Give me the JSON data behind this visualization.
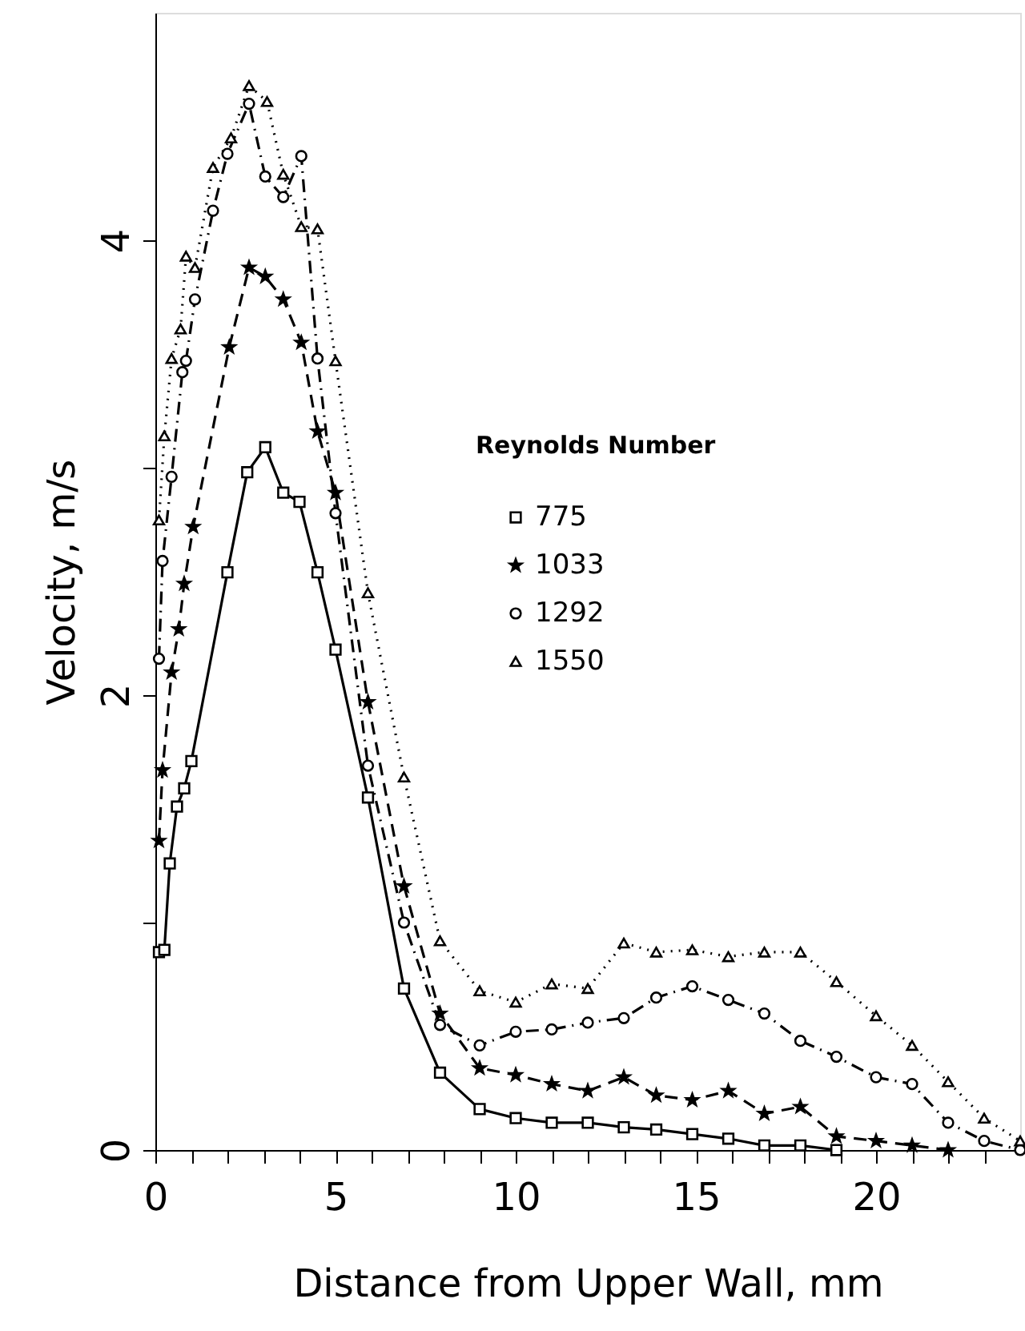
{
  "chart_data": {
    "type": "line",
    "xlabel": "Distance from Upper Wall, mm",
    "ylabel": "Velocity, m/s",
    "legend_title": "Reynolds Number",
    "legend": "right",
    "grid": false,
    "xlim": [
      0,
      24
    ],
    "ylim": [
      0,
      5
    ],
    "xticks": [
      0,
      {
        "value": 1,
        "label": null
      },
      {
        "value": 2,
        "label": null
      },
      {
        "value": 3,
        "label": null
      },
      {
        "value": 4,
        "label": null
      },
      5,
      {
        "value": 6,
        "label": null
      },
      {
        "value": 7,
        "label": null
      },
      {
        "value": 8,
        "label": null
      },
      {
        "value": 9,
        "label": null
      },
      10,
      {
        "value": 11,
        "label": null
      },
      {
        "value": 12,
        "label": null
      },
      {
        "value": 13,
        "label": null
      },
      {
        "value": 14,
        "label": null
      },
      15,
      {
        "value": 16,
        "label": null
      },
      {
        "value": 17,
        "label": null
      },
      {
        "value": 18,
        "label": null
      },
      {
        "value": 19,
        "label": null
      },
      20,
      {
        "value": 21,
        "label": null
      },
      {
        "value": 22,
        "label": null
      },
      {
        "value": 23,
        "label": null
      }
    ],
    "yticks": [
      0,
      {
        "value": 1,
        "label": null
      },
      2,
      {
        "value": 3,
        "label": null
      },
      4
    ],
    "series": [
      {
        "name": "775",
        "color": "#000000",
        "marker": "square",
        "line_style": "solid",
        "x": [
          0.1,
          0.25,
          0.4,
          0.6,
          0.8,
          1.0,
          2.0,
          2.55,
          3.05,
          3.55,
          4.0,
          4.5,
          5.0,
          5.9,
          6.9,
          7.9,
          9,
          10,
          11,
          12,
          13,
          13.9,
          14.9,
          15.9,
          16.9,
          17.9,
          18.9
        ],
        "values": [
          0.87,
          0.88,
          1.26,
          1.51,
          1.59,
          1.71,
          2.54,
          2.98,
          3.09,
          2.89,
          2.85,
          2.54,
          2.2,
          1.55,
          0.71,
          0.34,
          0.18,
          0.14,
          0.12,
          0.12,
          0.1,
          0.09,
          0.07,
          0.05,
          0.02,
          0.02,
          0
        ]
      },
      {
        "name": "1033",
        "color": "#000000",
        "marker": "star",
        "line_style": "dashed",
        "x": [
          0.1,
          0.2,
          0.45,
          0.65,
          0.8,
          1.05,
          2.05,
          2.6,
          3.05,
          3.55,
          4.05,
          4.5,
          5.0,
          5.9,
          6.9,
          7.9,
          9,
          10,
          11,
          12,
          13,
          13.9,
          14.9,
          15.9,
          16.9,
          17.9,
          18.9,
          20,
          21,
          22
        ],
        "values": [
          1.36,
          1.67,
          2.1,
          2.29,
          2.49,
          2.74,
          3.53,
          3.88,
          3.84,
          3.74,
          3.55,
          3.16,
          2.89,
          1.97,
          1.16,
          0.6,
          0.36,
          0.33,
          0.29,
          0.26,
          0.32,
          0.24,
          0.22,
          0.26,
          0.16,
          0.19,
          0.06,
          0.04,
          0.02,
          0
        ]
      },
      {
        "name": "1292",
        "color": "#000000",
        "marker": "circle",
        "line_style": "dashdot",
        "x": [
          0.1,
          0.2,
          0.45,
          0.75,
          0.85,
          1.1,
          1.6,
          2.0,
          2.6,
          3.05,
          3.55,
          4.05,
          4.5,
          5.0,
          5.9,
          6.9,
          7.9,
          9,
          10,
          11,
          12,
          13,
          13.9,
          14.9,
          15.9,
          16.9,
          17.9,
          18.9,
          20,
          21,
          22,
          23,
          24
        ],
        "values": [
          2.16,
          2.59,
          2.96,
          3.42,
          3.47,
          3.74,
          4.13,
          4.38,
          4.6,
          4.28,
          4.19,
          4.37,
          3.48,
          2.8,
          1.69,
          1.0,
          0.55,
          0.46,
          0.52,
          0.53,
          0.56,
          0.58,
          0.67,
          0.72,
          0.66,
          0.6,
          0.48,
          0.41,
          0.32,
          0.29,
          0.12,
          0.04,
          0
        ]
      },
      {
        "name": "1550",
        "color": "#000000",
        "marker": "triangle",
        "line_style": "dotted",
        "x": [
          0.1,
          0.25,
          0.45,
          0.7,
          0.85,
          1.1,
          1.6,
          2.1,
          2.6,
          3.1,
          3.55,
          4.05,
          4.5,
          5.0,
          5.9,
          6.9,
          7.9,
          9,
          10,
          11,
          12,
          13,
          13.9,
          14.9,
          15.9,
          16.9,
          17.9,
          18.9,
          20,
          21,
          22,
          23,
          24
        ],
        "values": [
          2.77,
          3.14,
          3.48,
          3.61,
          3.93,
          3.88,
          4.32,
          4.45,
          4.68,
          4.61,
          4.29,
          4.06,
          4.05,
          3.47,
          2.45,
          1.64,
          0.92,
          0.7,
          0.65,
          0.73,
          0.71,
          0.91,
          0.87,
          0.88,
          0.85,
          0.87,
          0.87,
          0.74,
          0.59,
          0.46,
          0.3,
          0.14,
          0.04
        ]
      }
    ]
  }
}
